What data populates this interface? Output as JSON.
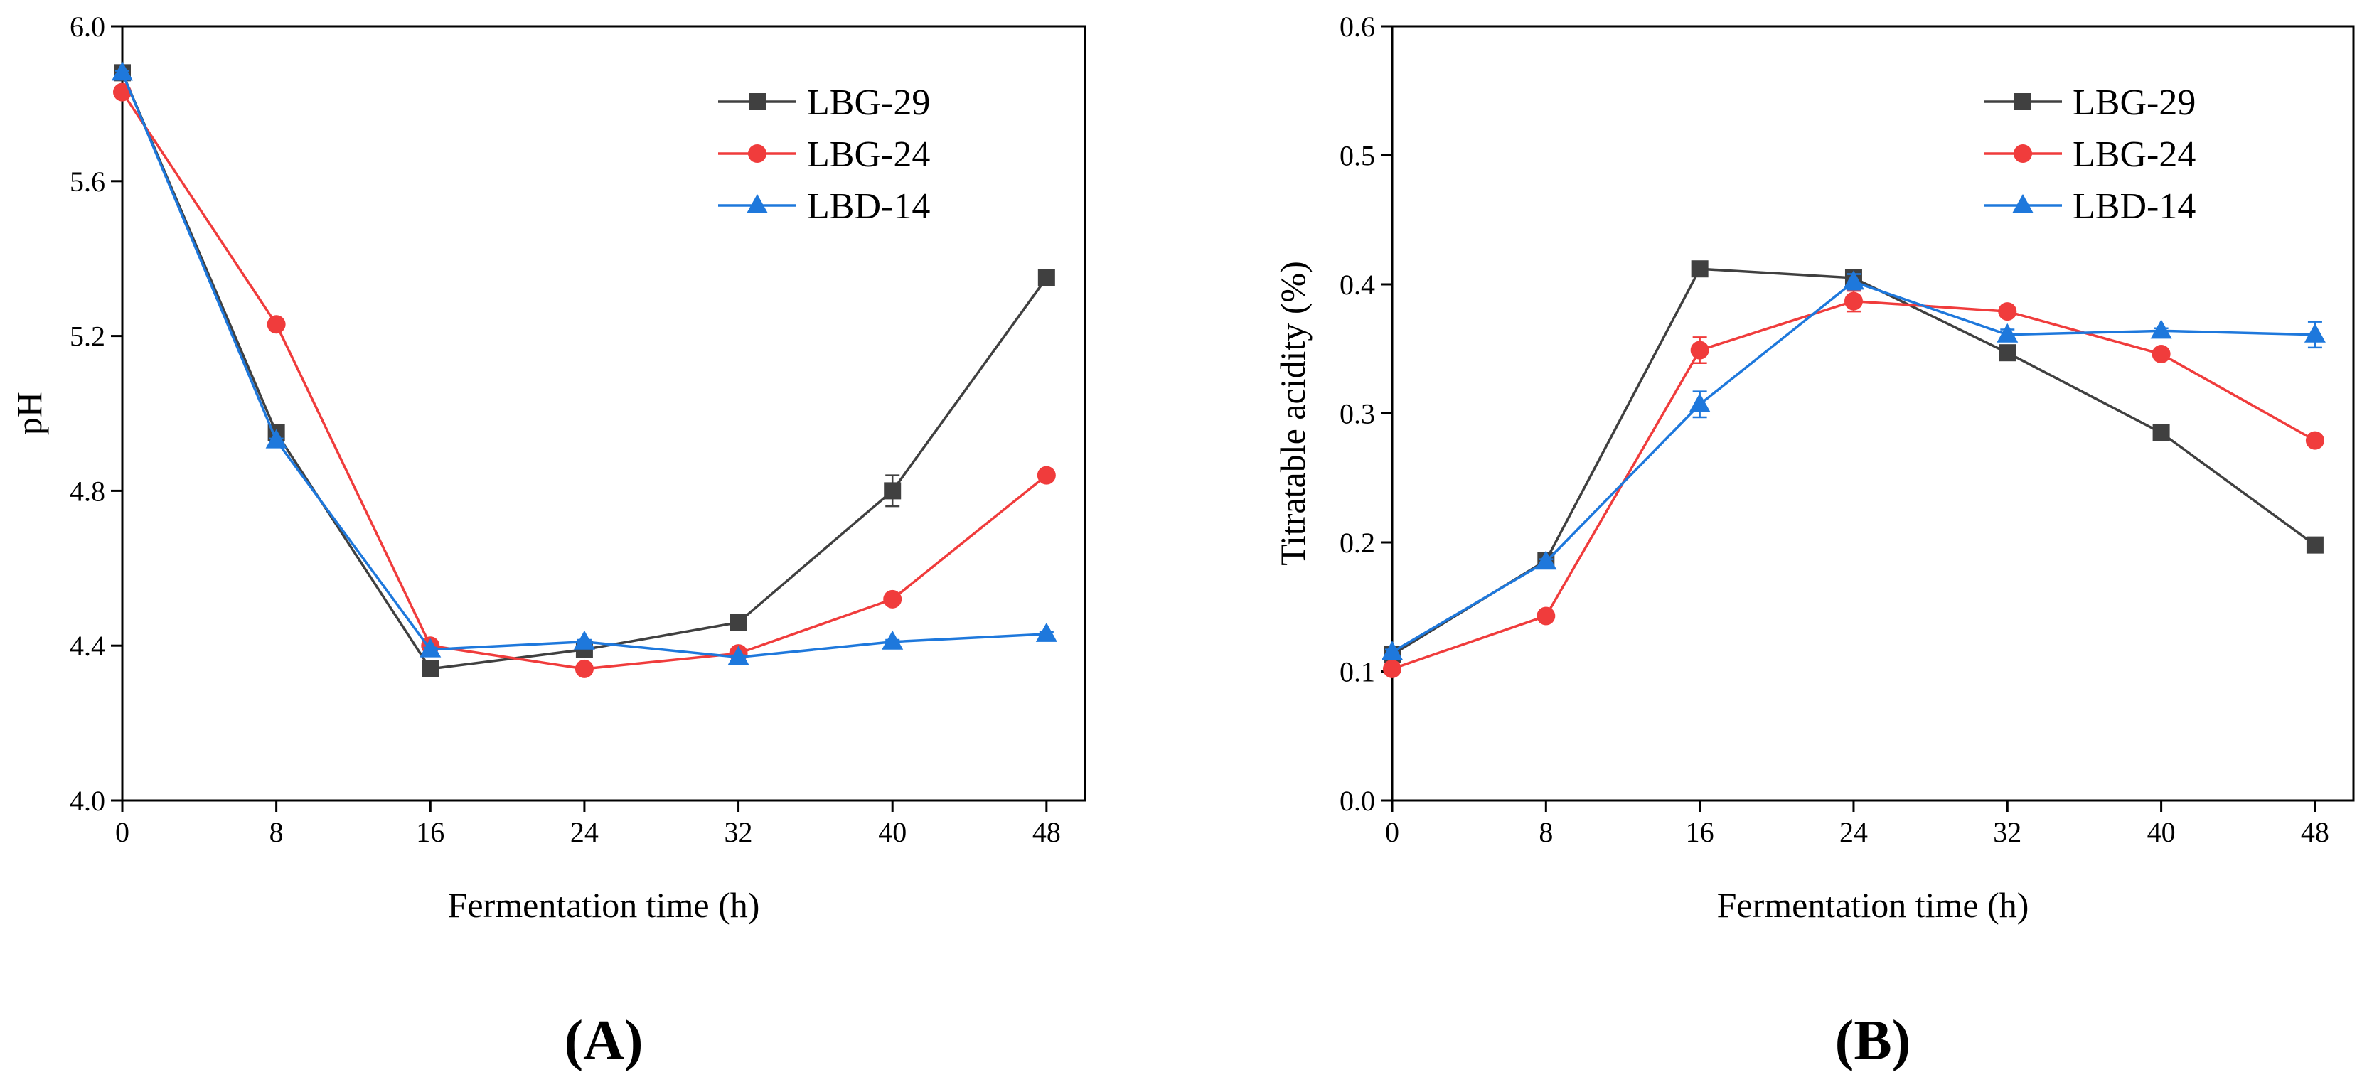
{
  "chart_data": [
    {
      "type": "line",
      "panel_label": "(A)",
      "title": "",
      "xlabel": "Fermentation time (h)",
      "ylabel": "pH",
      "xlim": [
        0,
        50
      ],
      "ylim": [
        4.0,
        6.0
      ],
      "x_ticks": [
        0,
        8,
        16,
        24,
        32,
        40,
        48
      ],
      "y_ticks": [
        4.0,
        4.4,
        4.8,
        5.2,
        5.6,
        6.0
      ],
      "y_tick_labels": [
        "4.0",
        "4.4",
        "4.8",
        "5.2",
        "5.6",
        "6.0"
      ],
      "grid": false,
      "legend_position": "top-right",
      "x": [
        0,
        8,
        16,
        24,
        32,
        40,
        48
      ],
      "series": [
        {
          "name": "LBG-29",
          "marker": "square",
          "color": "#404040",
          "values": [
            5.88,
            4.95,
            4.34,
            4.39,
            4.46,
            4.8,
            5.35
          ],
          "error": [
            0.005,
            0.005,
            0.005,
            0.005,
            0.005,
            0.04,
            0.005
          ]
        },
        {
          "name": "LBG-24",
          "marker": "circle",
          "color": "#f03c3c",
          "values": [
            5.83,
            5.23,
            4.4,
            4.34,
            4.38,
            4.52,
            4.84
          ],
          "error": [
            0.005,
            0.005,
            0.005,
            0.005,
            0.005,
            0.005,
            0.005
          ]
        },
        {
          "name": "LBD-14",
          "marker": "triangle",
          "color": "#1e78dc",
          "values": [
            5.88,
            4.93,
            4.39,
            4.41,
            4.37,
            4.41,
            4.43
          ],
          "error": [
            0.005,
            0.005,
            0.005,
            0.005,
            0.005,
            0.005,
            0.005
          ]
        }
      ]
    },
    {
      "type": "line",
      "panel_label": "(B)",
      "title": "",
      "xlabel": "Fermentation time (h)",
      "ylabel": "Titratable acidity (%)",
      "xlim": [
        0,
        50
      ],
      "ylim": [
        0.0,
        0.6
      ],
      "x_ticks": [
        0,
        8,
        16,
        24,
        32,
        40,
        48
      ],
      "y_ticks": [
        0.0,
        0.1,
        0.2,
        0.3,
        0.4,
        0.5,
        0.6
      ],
      "y_tick_labels": [
        "0.0",
        "0.1",
        "0.2",
        "0.3",
        "0.4",
        "0.5",
        "0.6"
      ],
      "grid": false,
      "legend_position": "top-right",
      "x": [
        0,
        8,
        16,
        24,
        32,
        40,
        48
      ],
      "series": [
        {
          "name": "LBG-29",
          "marker": "square",
          "color": "#404040",
          "values": [
            0.113,
            0.186,
            0.412,
            0.405,
            0.347,
            0.285,
            0.198
          ],
          "error": [
            0.002,
            0.002,
            0.002,
            0.006,
            0.002,
            0.002,
            0.002
          ]
        },
        {
          "name": "LBG-24",
          "marker": "circle",
          "color": "#f03c3c",
          "values": [
            0.102,
            0.143,
            0.349,
            0.387,
            0.379,
            0.346,
            0.279
          ],
          "error": [
            0.002,
            0.002,
            0.01,
            0.008,
            0.002,
            0.002,
            0.002
          ]
        },
        {
          "name": "LBD-14",
          "marker": "triangle",
          "color": "#1e78dc",
          "values": [
            0.115,
            0.185,
            0.307,
            0.402,
            0.361,
            0.364,
            0.361
          ],
          "error": [
            0.002,
            0.002,
            0.01,
            0.006,
            0.004,
            0.002,
            0.01
          ]
        }
      ]
    }
  ]
}
